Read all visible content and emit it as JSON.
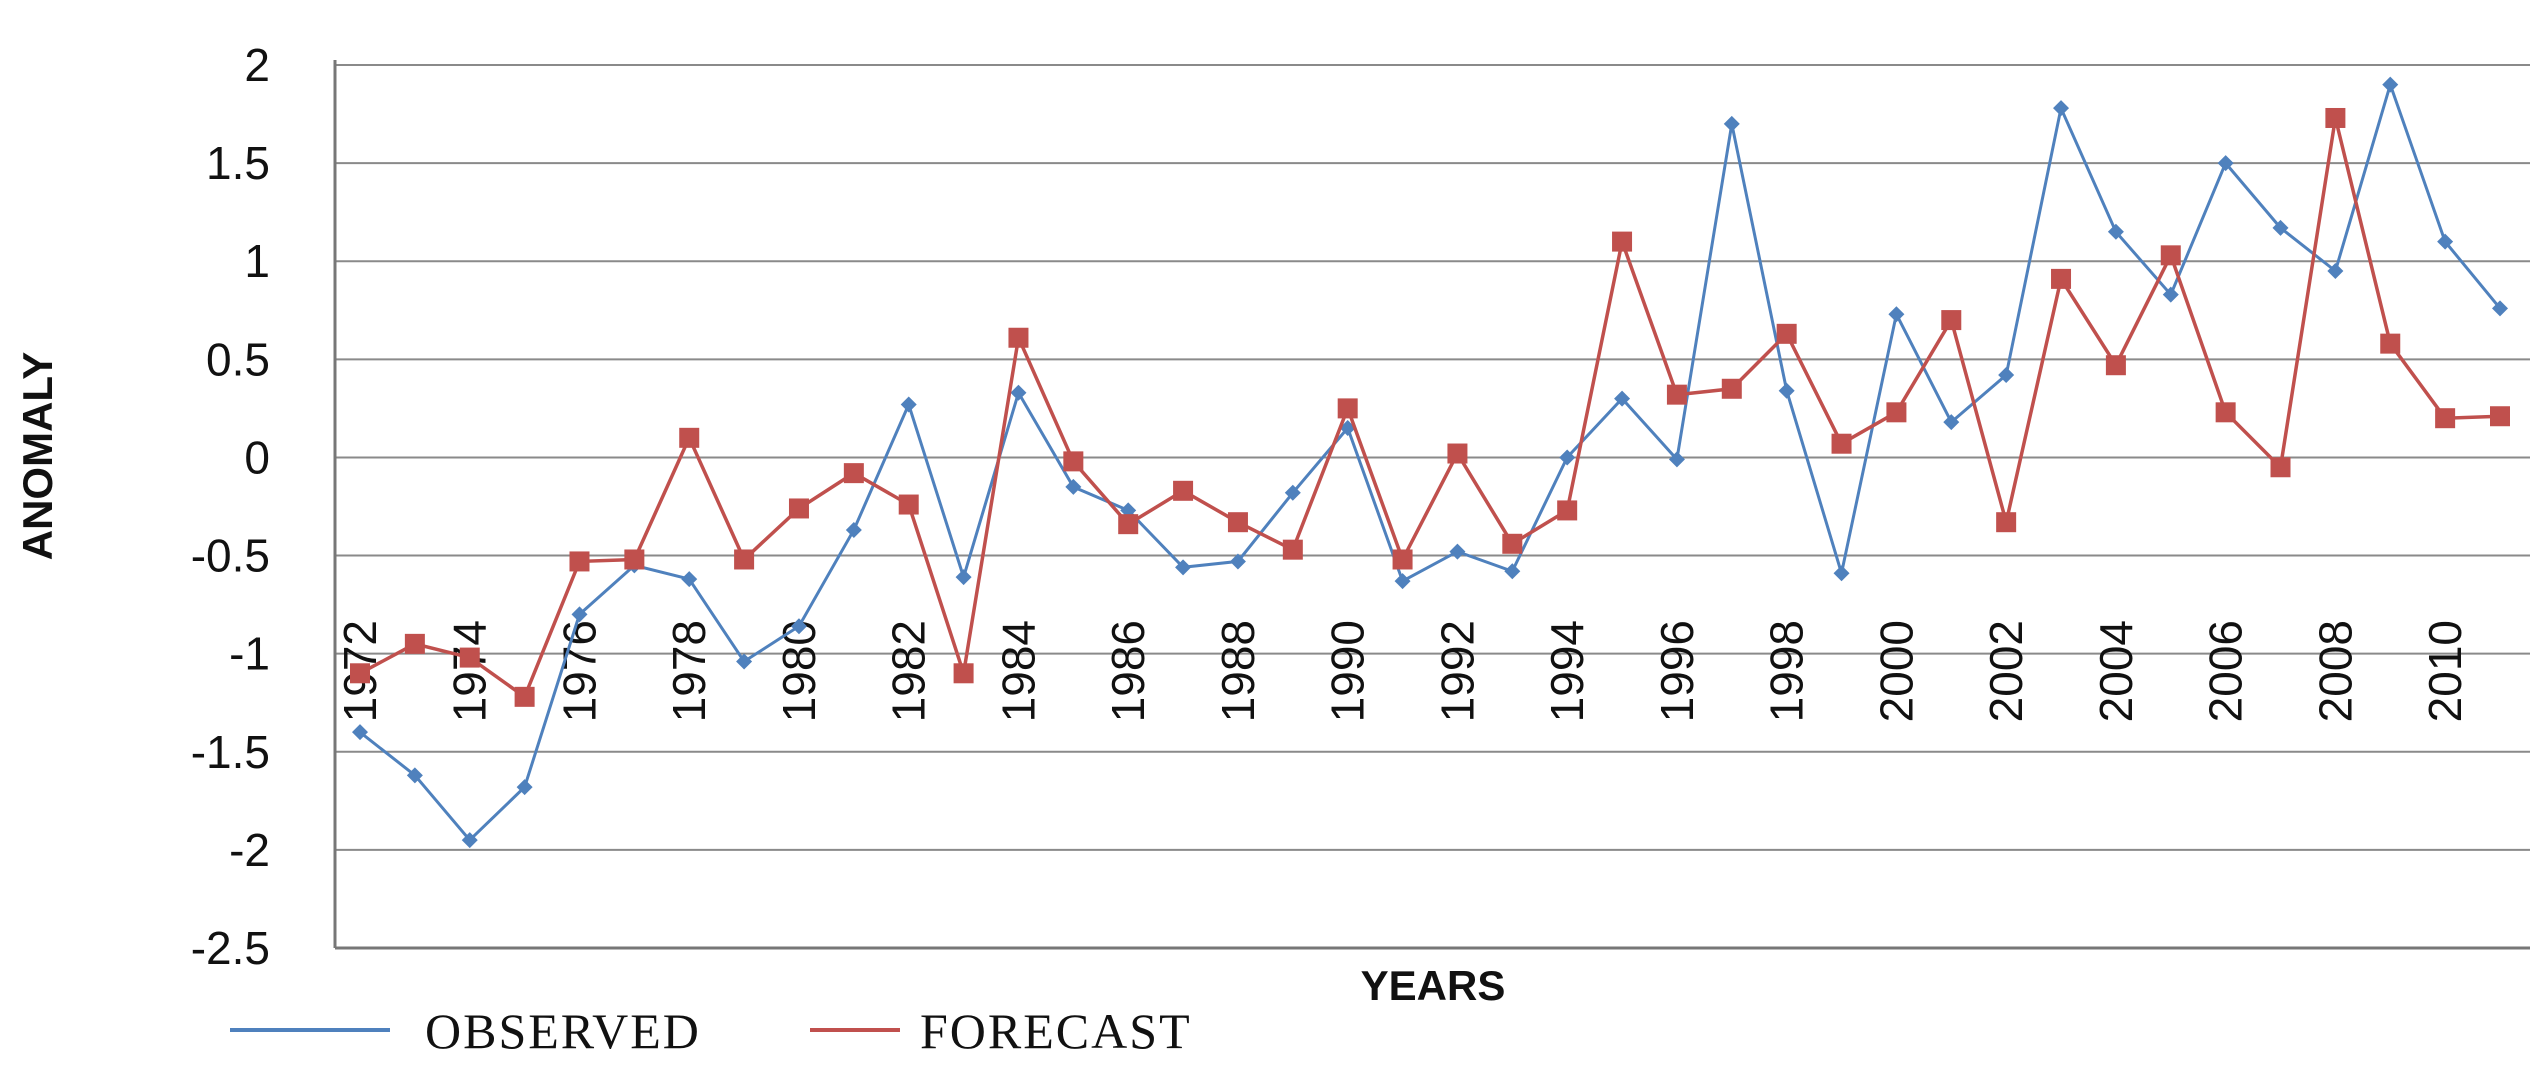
{
  "chart_data": {
    "type": "line",
    "title": "",
    "xlabel": "YEARS",
    "ylabel": "ANOMALY",
    "ylim": [
      -2.5,
      2
    ],
    "yticks": [
      "2",
      "1.5",
      "1",
      "0.5",
      "0",
      "-0.5",
      "-1",
      "-1.5",
      "-2",
      "-2.5"
    ],
    "ytick_values": [
      2,
      1.5,
      1,
      0.5,
      0,
      -0.5,
      -1,
      -1.5,
      -2,
      -2.5
    ],
    "x": [
      1972,
      1973,
      1974,
      1975,
      1976,
      1977,
      1978,
      1979,
      1980,
      1981,
      1982,
      1983,
      1984,
      1985,
      1986,
      1987,
      1988,
      1989,
      1990,
      1991,
      1992,
      1993,
      1994,
      1995,
      1996,
      1997,
      1998,
      1999,
      2000,
      2001,
      2002,
      2003,
      2004,
      2005,
      2006,
      2007,
      2008,
      2009,
      2010,
      2011
    ],
    "xtick_labels": [
      "1972",
      "1974",
      "1976",
      "1978",
      "1980",
      "1982",
      "1984",
      "1986",
      "1988",
      "1990",
      "1992",
      "1994",
      "1996",
      "1998",
      "2000",
      "2002",
      "2004",
      "2006",
      "2008",
      "2010"
    ],
    "grid": true,
    "legend_position": "bottom",
    "series": [
      {
        "name": "OBSERVED",
        "color": "#4f81bd",
        "marker": "diamond",
        "values": [
          -1.4,
          -1.62,
          -1.95,
          -1.68,
          -0.8,
          -0.55,
          -0.62,
          -1.04,
          -0.86,
          -0.37,
          0.27,
          -0.61,
          0.33,
          -0.15,
          -0.27,
          -0.56,
          -0.53,
          -0.18,
          0.15,
          -0.63,
          -0.48,
          -0.58,
          0.0,
          0.3,
          -0.01,
          1.7,
          0.34,
          -0.59,
          0.73,
          0.18,
          0.42,
          1.78,
          1.15,
          0.83,
          1.5,
          1.17,
          0.95,
          1.9,
          1.1,
          0.76
        ]
      },
      {
        "name": "FORECAST",
        "color": "#c0504d",
        "marker": "square",
        "values": [
          -1.1,
          -0.95,
          -1.02,
          -1.22,
          -0.53,
          -0.52,
          0.1,
          -0.52,
          -0.26,
          -0.08,
          -0.24,
          -1.1,
          0.61,
          -0.02,
          -0.34,
          -0.17,
          -0.33,
          -0.47,
          0.25,
          -0.52,
          0.02,
          -0.44,
          -0.27,
          1.1,
          0.32,
          0.35,
          0.63,
          0.07,
          0.23,
          0.7,
          -0.33,
          0.91,
          0.47,
          1.03,
          0.23,
          -0.05,
          1.73,
          0.58,
          0.2,
          0.21
        ]
      }
    ]
  }
}
